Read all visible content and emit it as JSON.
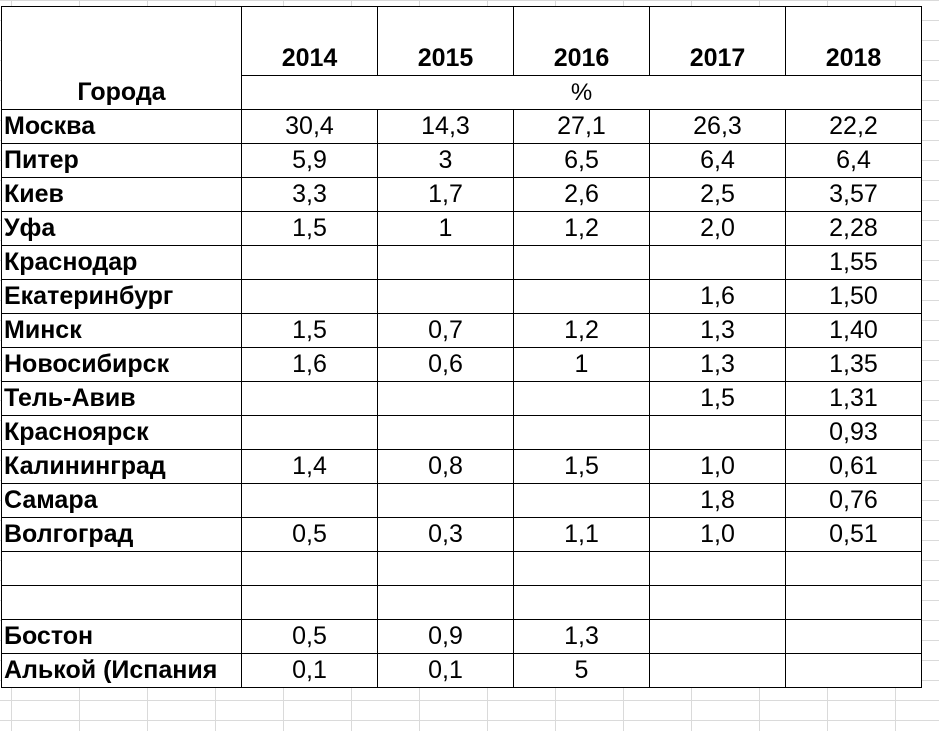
{
  "header": {
    "city_label": "Города",
    "years": [
      "2014",
      "2015",
      "2016",
      "2017",
      "2018"
    ],
    "unit": "%"
  },
  "rows": [
    {
      "city": "Москва",
      "values": [
        "30,4",
        "14,3",
        "27,1",
        "26,3",
        "22,2"
      ]
    },
    {
      "city": "Питер",
      "values": [
        "5,9",
        "3",
        "6,5",
        "6,4",
        "6,4"
      ]
    },
    {
      "city": "Киев",
      "values": [
        "3,3",
        "1,7",
        "2,6",
        "2,5",
        "3,57"
      ]
    },
    {
      "city": "Уфа",
      "values": [
        "1,5",
        "1",
        "1,2",
        "2,0",
        "2,28"
      ]
    },
    {
      "city": "Краснодар",
      "values": [
        "",
        "",
        "",
        "",
        "1,55"
      ]
    },
    {
      "city": "Екатеринбург",
      "values": [
        "",
        "",
        "",
        "1,6",
        "1,50"
      ]
    },
    {
      "city": "Минск",
      "values": [
        "1,5",
        "0,7",
        "1,2",
        "1,3",
        "1,40"
      ]
    },
    {
      "city": "Новосибирск",
      "values": [
        "1,6",
        "0,6",
        "1",
        "1,3",
        "1,35"
      ]
    },
    {
      "city": "Тель-Авив",
      "values": [
        "",
        "",
        "",
        "1,5",
        "1,31"
      ]
    },
    {
      "city": "Красноярск",
      "values": [
        "",
        "",
        "",
        "",
        "0,93"
      ]
    },
    {
      "city": "Калининград",
      "values": [
        "1,4",
        "0,8",
        "1,5",
        "1,0",
        "0,61"
      ]
    },
    {
      "city": "Самара",
      "values": [
        "",
        "",
        "",
        "1,8",
        "0,76"
      ]
    },
    {
      "city": "Волгоград",
      "values": [
        "0,5",
        "0,3",
        "1,1",
        "1,0",
        "0,51"
      ]
    },
    {
      "city": "",
      "values": [
        "",
        "",
        "",
        "",
        ""
      ]
    },
    {
      "city": "",
      "values": [
        "",
        "",
        "",
        "",
        ""
      ]
    },
    {
      "city": "Бостон",
      "values": [
        "0,5",
        "0,9",
        "1,3",
        "",
        ""
      ]
    },
    {
      "city": "Алькой (Испания",
      "values": [
        "0,1",
        "0,1",
        "5",
        "",
        ""
      ]
    }
  ]
}
